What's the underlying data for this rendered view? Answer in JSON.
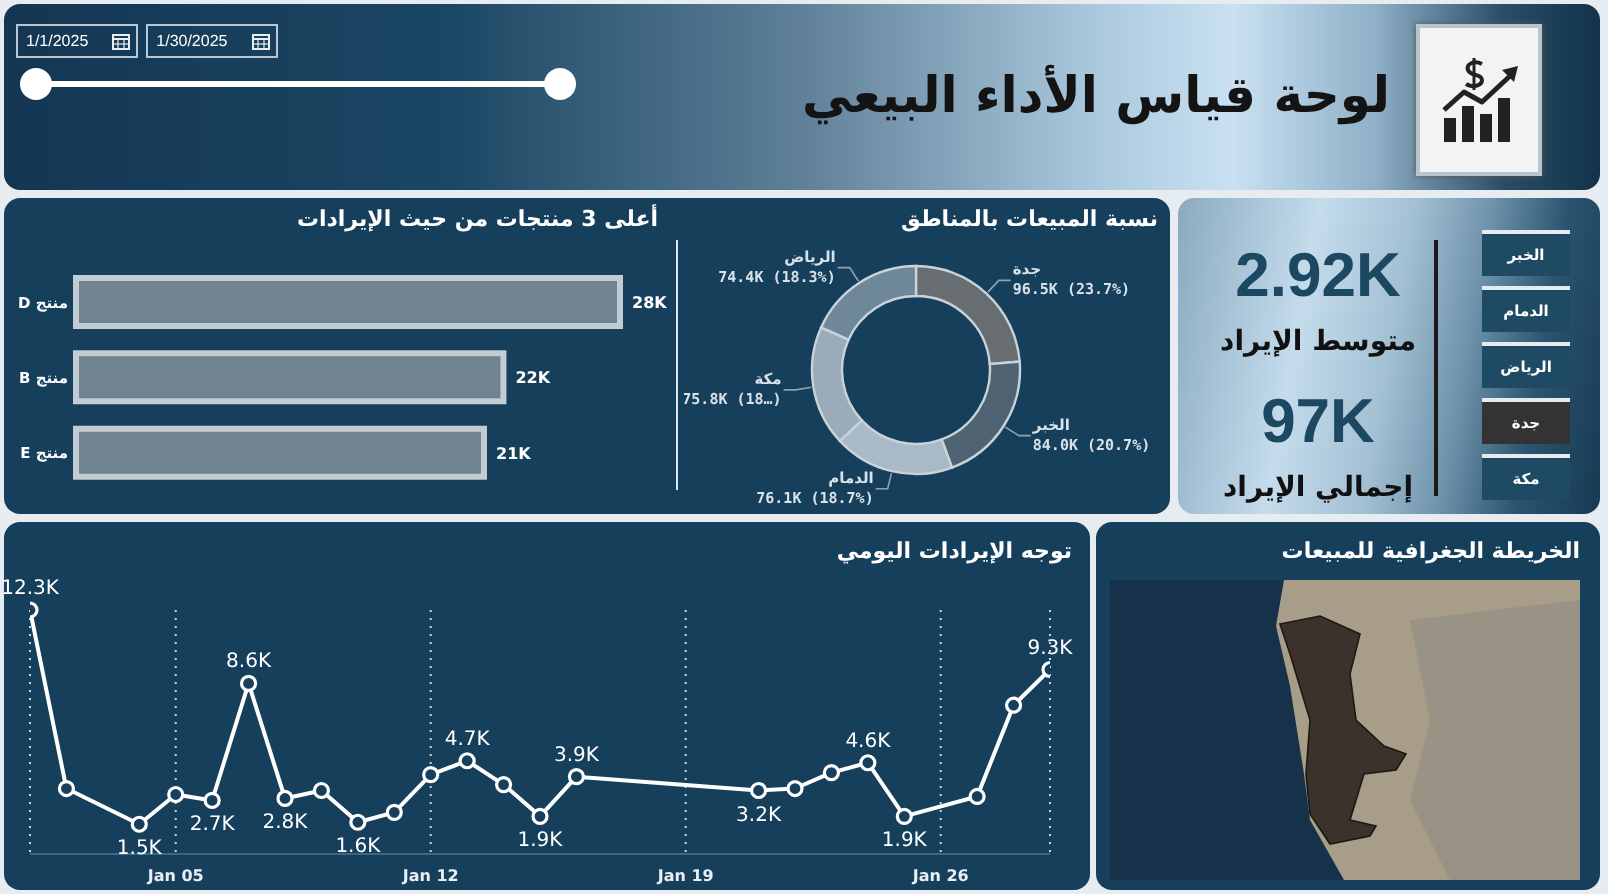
{
  "chart_data": [
    {
      "type": "other",
      "title": "لوحة قياس الأداء البيعي",
      "annotations": [
        "1/1/2025",
        "1/30/2025"
      ]
    },
    {
      "type": "other",
      "annotations": [
        "2.92K",
        "متوسط الإيراد",
        "97K",
        "إجمالي الإيراد"
      ],
      "categories": [
        "الخبر",
        "الدمام",
        "الرياض",
        "جدة",
        "مكة"
      ],
      "colors": [
        "#1e4a64",
        "#1e4a64",
        "#1e4a64",
        "#333333",
        "#1e4a64"
      ]
    },
    {
      "type": "donut",
      "title": "نسبة المبيعات بالمناطق",
      "categories": [
        "جدة",
        "الخبر",
        "الدمام",
        "مكة",
        "الرياض"
      ],
      "values": [
        96500,
        84000,
        76100,
        75800,
        74400
      ],
      "value_labels": [
        "96.5K (23.7%)",
        "84.0K (20.7%)",
        "76.1K (18.7%)",
        "75.8K (18…)",
        "74.4K (18.3%)"
      ],
      "colors": [
        "#686d71",
        "#4f6372",
        "#a9b9c5",
        "#9aacb9",
        "#6e8899"
      ]
    },
    {
      "type": "bar",
      "orientation": "horizontal",
      "title": "أعلى 3 منتجات من حيث الإيرادات",
      "categories": [
        "منتج D",
        "منتج B",
        "منتج E"
      ],
      "values": [
        28000,
        22000,
        21000
      ],
      "value_labels": [
        "28K",
        "22K",
        "21K"
      ],
      "color": "#6f8391"
    },
    {
      "type": "other",
      "title": "الخريطة الجغرافية للمبيعات"
    },
    {
      "type": "line",
      "title": "توجه الإيرادات اليومي",
      "x": [
        "2025-01-01",
        "2025-01-02",
        "2025-01-04",
        "2025-01-05",
        "2025-01-06",
        "2025-01-07",
        "2025-01-08",
        "2025-01-09",
        "2025-01-10",
        "2025-01-11",
        "2025-01-12",
        "2025-01-13",
        "2025-01-14",
        "2025-01-15",
        "2025-01-16",
        "2025-01-21",
        "2025-01-22",
        "2025-01-23",
        "2025-01-24",
        "2025-01-25",
        "2025-01-27",
        "2025-01-28",
        "2025-01-29"
      ],
      "values": [
        12300,
        3300,
        1500,
        3000,
        2700,
        8600,
        2800,
        3200,
        1600,
        2100,
        4000,
        4700,
        3500,
        1900,
        3900,
        3200,
        3300,
        4100,
        4600,
        1900,
        2900,
        7500,
        9300
      ],
      "value_labels": [
        "12.3K",
        null,
        "1.5K",
        null,
        "2.7K",
        "8.6K",
        "2.8K",
        null,
        "1.6K",
        null,
        null,
        "4.7K",
        null,
        "1.9K",
        "3.9K",
        "3.2K",
        null,
        null,
        "4.6K",
        "1.9K",
        null,
        null,
        "9.3K"
      ],
      "color": "#ffffff",
      "marker": "circle",
      "grid": "x",
      "xlim": [
        "2025-01-01",
        "2025-01-29"
      ],
      "xticks": [
        {
          "value": "2025-01-05",
          "label": "Jan 05"
        },
        {
          "value": "2025-01-12",
          "label": "Jan 12"
        },
        {
          "value": "2025-01-19",
          "label": "Jan 19"
        },
        {
          "value": "2025-01-26",
          "label": "Jan 26"
        }
      ]
    }
  ]
}
